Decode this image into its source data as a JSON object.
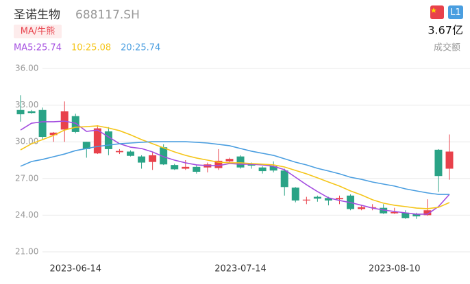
{
  "header": {
    "title": "圣诺生物",
    "code": "688117.SH",
    "button": "MA/牛熊",
    "badge": "L1",
    "amount": "3.67亿",
    "amount_label": "成交额"
  },
  "chart_data": {
    "type": "candlestick",
    "categories": [
      null,
      null,
      null,
      null,
      null,
      "2023-06-14",
      null,
      null,
      null,
      null,
      null,
      null,
      null,
      null,
      null,
      null,
      null,
      null,
      null,
      null,
      "2023-07-14",
      null,
      null,
      null,
      null,
      null,
      null,
      null,
      null,
      null,
      null,
      null,
      null,
      null,
      "2023-08-10",
      null,
      null,
      null,
      null,
      null
    ],
    "open": [
      32.6,
      32.5,
      32.6,
      30.55,
      31.0,
      32.1,
      30.0,
      29.05,
      30.85,
      29.15,
      29.2,
      28.8,
      28.35,
      29.55,
      28.1,
      27.8,
      27.95,
      27.9,
      27.85,
      28.4,
      28.8,
      28.15,
      27.9,
      28.0,
      27.65,
      26.25,
      25.2,
      25.5,
      25.4,
      25.3,
      25.6,
      24.5,
      24.6,
      24.6,
      24.15,
      24.2,
      24.1,
      24.0,
      29.35,
      27.8
    ],
    "high": [
      33.8,
      32.6,
      32.8,
      30.8,
      33.3,
      32.3,
      30.0,
      31.35,
      31.2,
      29.4,
      29.3,
      28.9,
      29.2,
      29.8,
      28.2,
      28.5,
      28.1,
      28.3,
      29.4,
      28.7,
      28.9,
      28.3,
      28.0,
      28.4,
      27.8,
      26.3,
      25.5,
      25.6,
      25.5,
      25.6,
      25.7,
      24.8,
      24.9,
      24.9,
      24.6,
      24.4,
      24.2,
      25.3,
      29.4,
      30.6
    ],
    "low": [
      31.65,
      32.3,
      30.2,
      30.0,
      30.0,
      30.7,
      28.7,
      29.0,
      28.9,
      29.0,
      28.8,
      27.8,
      27.7,
      28.1,
      27.7,
      27.7,
      27.4,
      27.5,
      27.7,
      28.2,
      27.8,
      27.8,
      27.4,
      27.5,
      25.6,
      25.05,
      24.9,
      25.1,
      24.8,
      24.9,
      24.4,
      24.4,
      24.4,
      24.1,
      24.1,
      23.7,
      23.7,
      23.95,
      25.9,
      26.9
    ],
    "close": [
      32.25,
      32.35,
      30.4,
      30.75,
      32.5,
      30.8,
      29.4,
      31.1,
      29.4,
      29.25,
      28.85,
      28.3,
      28.9,
      28.15,
      27.75,
      27.95,
      27.55,
      28.15,
      28.45,
      28.6,
      27.9,
      28.05,
      27.6,
      27.65,
      26.3,
      25.2,
      25.27,
      25.35,
      25.2,
      25.4,
      24.5,
      24.65,
      24.65,
      24.15,
      24.25,
      23.75,
      23.9,
      24.4,
      27.2,
      29.2
    ],
    "up_color": "#e8414b",
    "down_color": "#2aa386",
    "series": [
      {
        "name": "MA5:25.74",
        "color": "#a44ee0",
        "values": [
          30.96,
          31.52,
          31.64,
          31.64,
          31.69,
          31.52,
          30.85,
          30.96,
          30.4,
          29.84,
          29.56,
          29.45,
          29.17,
          28.78,
          28.5,
          28.28,
          28.11,
          28.05,
          28.05,
          28.22,
          28.17,
          28.17,
          28.11,
          28.0,
          27.72,
          27.1,
          26.49,
          25.93,
          25.42,
          25.2,
          25.03,
          24.81,
          24.58,
          24.42,
          24.3,
          24.19,
          24.08,
          24.08,
          24.7,
          25.7
        ]
      },
      {
        "name": "10:25.08",
        "color": "#f5c518",
        "values": [
          29.34,
          29.84,
          30.18,
          30.52,
          30.96,
          31.19,
          31.24,
          31.3,
          31.13,
          30.91,
          30.57,
          30.18,
          29.84,
          29.51,
          29.17,
          28.89,
          28.67,
          28.5,
          28.33,
          28.28,
          28.28,
          28.22,
          28.17,
          28.11,
          27.94,
          27.66,
          27.38,
          27.05,
          26.71,
          26.38,
          25.98,
          25.65,
          25.26,
          24.98,
          24.81,
          24.7,
          24.58,
          24.53,
          24.64,
          25.03
        ]
      },
      {
        "name": "20:25.74",
        "color": "#4a9ee0",
        "values": [
          28.0,
          28.39,
          28.56,
          28.78,
          29.0,
          29.28,
          29.45,
          29.62,
          29.73,
          29.84,
          29.9,
          29.96,
          30.01,
          30.01,
          30.01,
          30.01,
          29.96,
          29.9,
          29.79,
          29.68,
          29.45,
          29.23,
          29.06,
          28.89,
          28.61,
          28.33,
          28.11,
          27.83,
          27.61,
          27.38,
          27.1,
          26.93,
          26.71,
          26.54,
          26.38,
          26.15,
          25.98,
          25.82,
          25.7,
          25.7
        ]
      }
    ],
    "ylim": [
      21,
      36
    ],
    "yticks": [
      {
        "value": 21,
        "label": "21.00"
      },
      {
        "value": 24,
        "label": "24.00"
      },
      {
        "value": 27,
        "label": "27.00"
      },
      {
        "value": 30,
        "label": "30.00"
      },
      {
        "value": 33,
        "label": "33.00"
      },
      {
        "value": 36,
        "label": "36.00"
      }
    ],
    "grid": true
  }
}
